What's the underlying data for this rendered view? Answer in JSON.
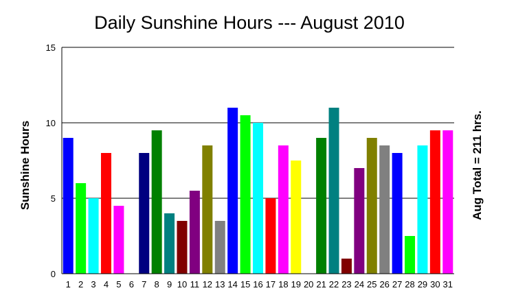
{
  "chart_data": {
    "type": "bar",
    "title": "Daily Sunshine Hours --- August 2010",
    "ylabel": "Sunshine Hours",
    "y2label": "Aug Total = 211 hrs.",
    "xlabel": "",
    "ylim": [
      0,
      15
    ],
    "yticks": [
      "0",
      "5",
      "10",
      "15"
    ],
    "grid": "horizontal",
    "legend": "none",
    "categories": [
      "1",
      "2",
      "3",
      "4",
      "5",
      "6",
      "7",
      "8",
      "9",
      "10",
      "11",
      "12",
      "13",
      "14",
      "15",
      "16",
      "17",
      "18",
      "19",
      "20",
      "21",
      "22",
      "23",
      "24",
      "25",
      "26",
      "27",
      "28",
      "29",
      "30",
      "31"
    ],
    "values": [
      9,
      6,
      5,
      8,
      4.5,
      0,
      8,
      9.5,
      4,
      3.5,
      5.5,
      8.5,
      3.5,
      11,
      10.5,
      10,
      5,
      8.5,
      7.5,
      0,
      9,
      11,
      1,
      7,
      9,
      8.5,
      8,
      2.5,
      8.5,
      9.5,
      9.5
    ],
    "colors": [
      "#0000ff",
      "#00ff00",
      "#00ffff",
      "#ff0000",
      "#ff00ff",
      "#ffff00",
      "#000080",
      "#008000",
      "#008080",
      "#800000",
      "#800080",
      "#808000",
      "#808080",
      "#0000ff",
      "#00ff00",
      "#00ffff",
      "#ff0000",
      "#ff00ff",
      "#ffff00",
      "#000080",
      "#008000",
      "#008080",
      "#800000",
      "#800080",
      "#808000",
      "#808080",
      "#0000ff",
      "#00ff00",
      "#00ffff",
      "#ff0000",
      "#ff00ff"
    ]
  }
}
